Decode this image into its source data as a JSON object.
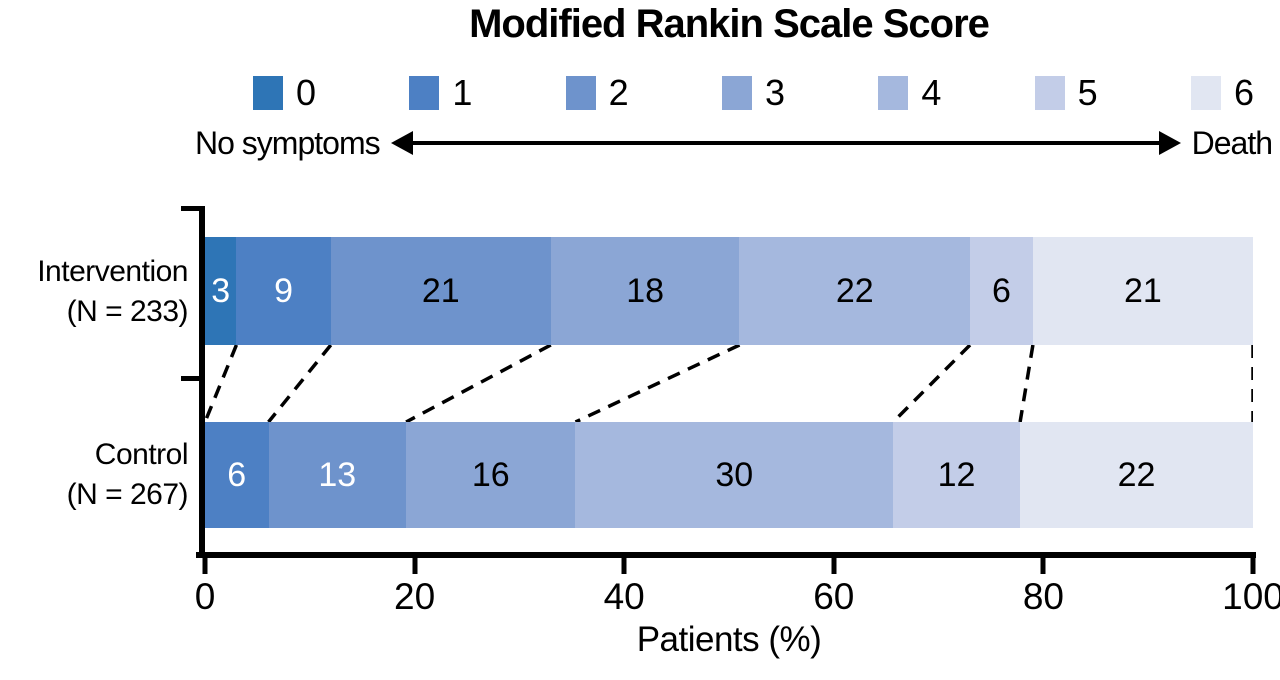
{
  "chart_data": {
    "type": "bar",
    "variant": "horizontal-stacked-percentage",
    "title": "Modified Rankin Scale Score",
    "xlabel": "Patients (%)",
    "xlim": [
      0,
      100
    ],
    "x_ticks": [
      "0",
      "20",
      "40",
      "60",
      "80",
      "100"
    ],
    "annotations": {
      "left_label": "No symptoms",
      "right_label": "Death",
      "arrow": "double-headed"
    },
    "legend": {
      "position": "top",
      "entries": [
        {
          "label": "0",
          "color": "#2E75B6"
        },
        {
          "label": "1",
          "color": "#4D80C4"
        },
        {
          "label": "2",
          "color": "#6E93CC"
        },
        {
          "label": "3",
          "color": "#8BA6D5"
        },
        {
          "label": "4",
          "color": "#A5B8DE"
        },
        {
          "label": "5",
          "color": "#C3CDE8"
        },
        {
          "label": "6",
          "color": "#E1E6F2"
        }
      ]
    },
    "rows": [
      {
        "label": "Intervention",
        "n_label": "(N = 233)",
        "segments": [
          {
            "score": "0",
            "value": 3,
            "text_color": "#FFFFFF"
          },
          {
            "score": "1",
            "value": 9,
            "text_color": "#FFFFFF"
          },
          {
            "score": "2",
            "value": 21,
            "text_color": "#000000"
          },
          {
            "score": "3",
            "value": 18,
            "text_color": "#000000"
          },
          {
            "score": "4",
            "value": 22,
            "text_color": "#000000"
          },
          {
            "score": "5",
            "value": 6,
            "text_color": "#000000"
          },
          {
            "score": "6",
            "value": 21,
            "text_color": "#000000"
          }
        ]
      },
      {
        "label": "Control",
        "n_label": "(N = 267)",
        "segments": [
          {
            "score": "1",
            "value": 6,
            "text_color": "#FFFFFF"
          },
          {
            "score": "2",
            "value": 13,
            "text_color": "#FFFFFF"
          },
          {
            "score": "3",
            "value": 16,
            "text_color": "#000000"
          },
          {
            "score": "4",
            "value": 30,
            "text_color": "#000000"
          },
          {
            "score": "5",
            "value": 12,
            "text_color": "#000000"
          },
          {
            "score": "6",
            "value": 22,
            "text_color": "#000000"
          }
        ]
      }
    ],
    "dashed_connectors_between_rows": true,
    "axis_color": "#000000",
    "grid": false
  }
}
